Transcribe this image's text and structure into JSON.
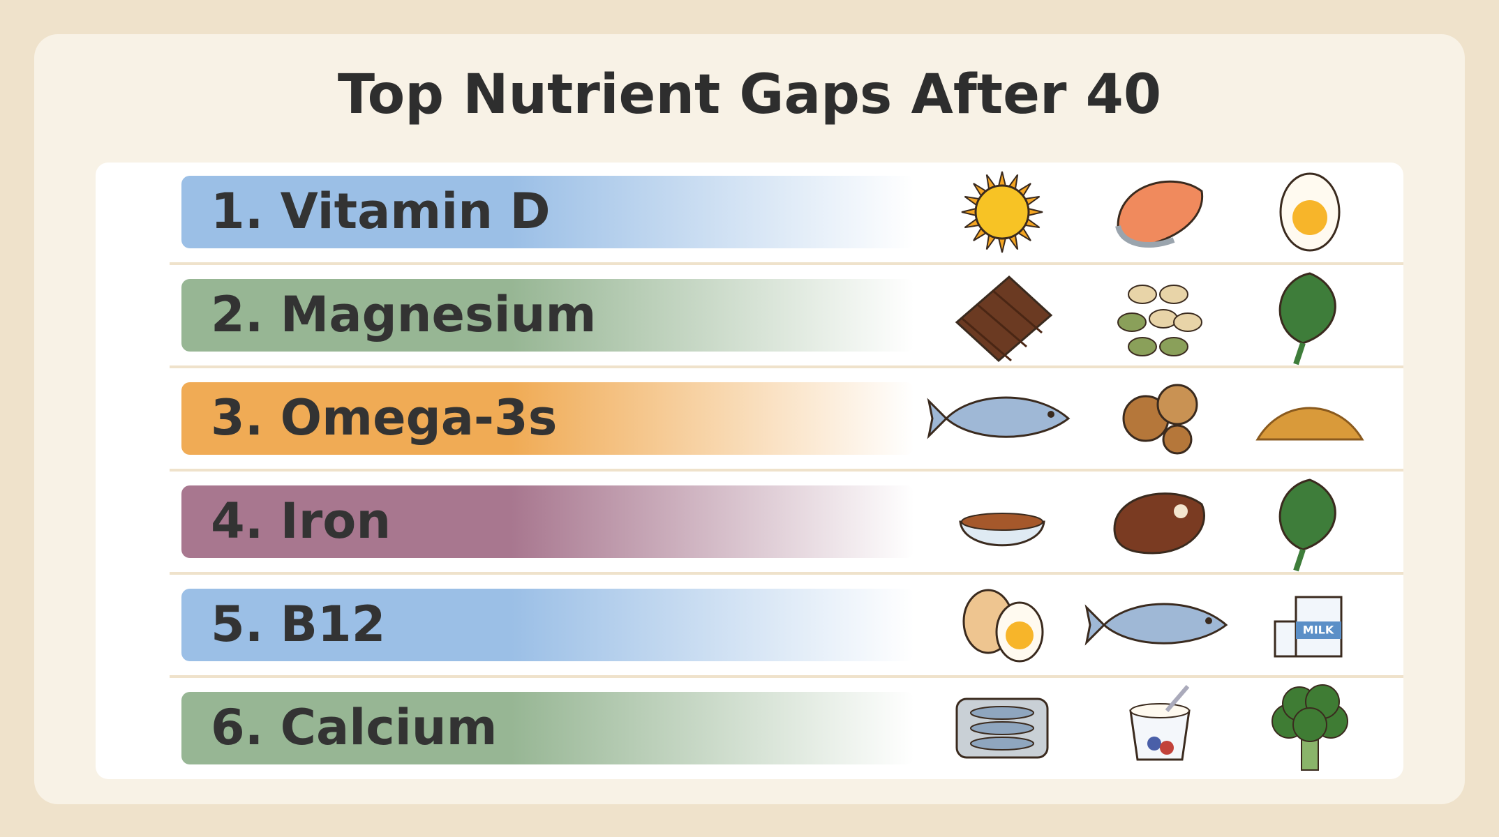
{
  "title": "Top Nutrient Gaps After 40",
  "rows": [
    {
      "label": "1. Vitamin D",
      "color": "#9bbfe6"
    },
    {
      "label": "2. Magnesium",
      "color": "#97b694"
    },
    {
      "label": "3. Omega-3s",
      "color": "#f0ab55"
    },
    {
      "label": "4. Iron",
      "color": "#a8778f"
    },
    {
      "label": "5. B12",
      "color": "#9bbfe6"
    },
    {
      "label": "6. Calcium",
      "color": "#97b694"
    }
  ],
  "milk_label": "MILK"
}
